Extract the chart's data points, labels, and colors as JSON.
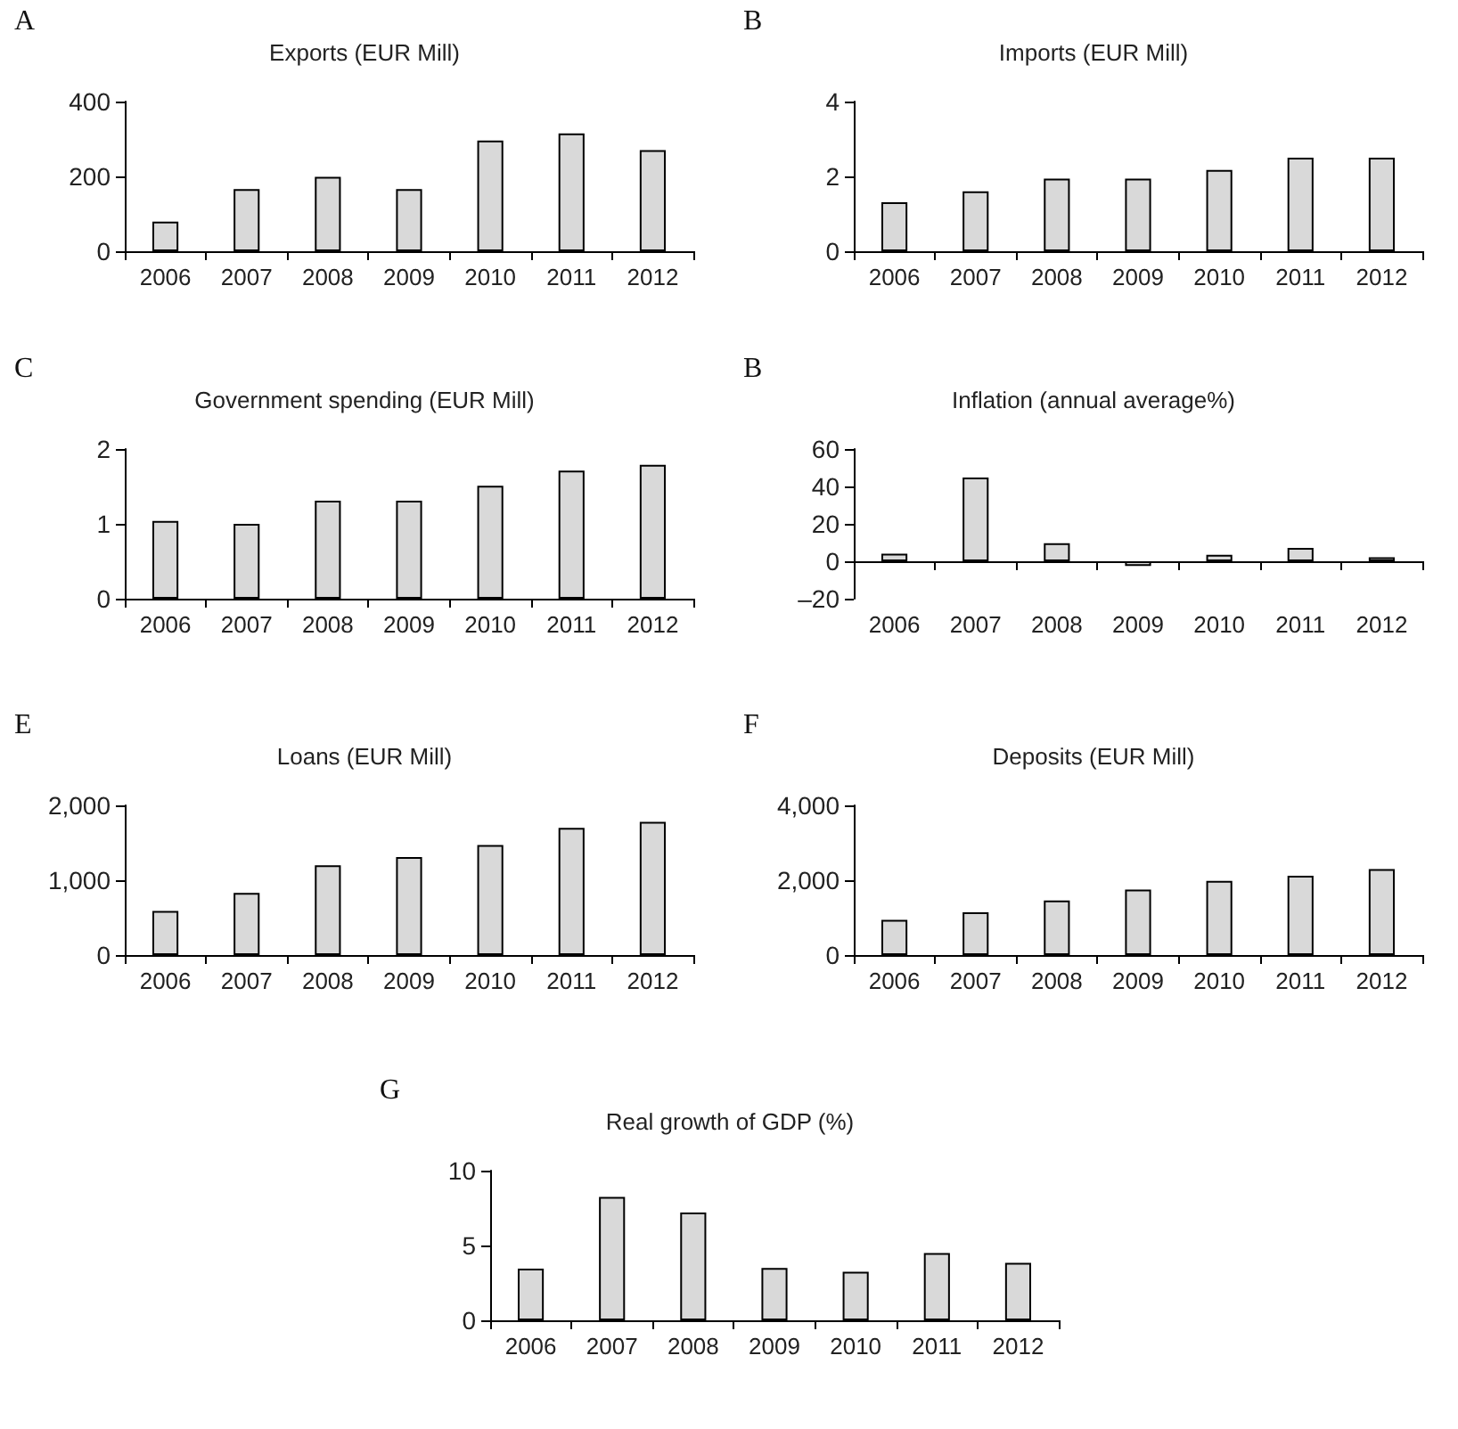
{
  "chart_data": [
    {
      "type": "bar",
      "title": "Exports (EUR Mill)",
      "annotations": [
        "A"
      ],
      "categories": [
        "2006",
        "2007",
        "2008",
        "2009",
        "2010",
        "2011",
        "2012"
      ],
      "values": [
        79,
        166,
        199,
        166,
        296,
        315,
        270
      ],
      "color": "#d9d9d9",
      "ylim": [
        0,
        400
      ],
      "yticks": [
        0,
        200,
        400
      ]
    },
    {
      "type": "bar",
      "title": "Imports (EUR Mill)",
      "annotations": [
        "B"
      ],
      "categories": [
        "2006",
        "2007",
        "2008",
        "2009",
        "2010",
        "2011",
        "2012"
      ],
      "values": [
        1.31,
        1.6,
        1.94,
        1.94,
        2.17,
        2.5,
        2.5
      ],
      "color": "#d9d9d9",
      "ylim": [
        0,
        4
      ],
      "yticks": [
        0,
        2,
        4
      ]
    },
    {
      "type": "bar",
      "title": "Government spending (EUR Mill)",
      "annotations": [
        "C"
      ],
      "categories": [
        "2006",
        "2007",
        "2008",
        "2009",
        "2010",
        "2011",
        "2012"
      ],
      "values": [
        1.04,
        1.0,
        1.31,
        1.31,
        1.51,
        1.71,
        1.79
      ],
      "color": "#d9d9d9",
      "ylim": [
        0,
        2
      ],
      "yticks": [
        0,
        1,
        2
      ]
    },
    {
      "type": "bar",
      "title": "Inflation (annual average%)",
      "annotations": [
        "B"
      ],
      "categories": [
        "2006",
        "2007",
        "2008",
        "2009",
        "2010",
        "2011",
        "2012"
      ],
      "values": [
        4,
        44.8,
        9.7,
        -2.5,
        3.5,
        7.2,
        2.2
      ],
      "color": "#d9d9d9",
      "ylim": [
        -20,
        60
      ],
      "yticks": [
        {
          "value": -20,
          "label": "–20"
        },
        0,
        20,
        40,
        60
      ]
    },
    {
      "type": "bar",
      "title": "Loans (EUR Mill)",
      "annotations": [
        "E"
      ],
      "categories": [
        "2006",
        "2007",
        "2008",
        "2009",
        "2010",
        "2011",
        "2012"
      ],
      "values": [
        590,
        830,
        1200,
        1310,
        1470,
        1700,
        1780
      ],
      "color": "#d9d9d9",
      "ylim": [
        0,
        2000
      ],
      "yticks": [
        0,
        {
          "value": 1000,
          "label": "1,000"
        },
        {
          "value": 2000,
          "label": "2,000"
        }
      ]
    },
    {
      "type": "bar",
      "title": "Deposits (EUR Mill)",
      "annotations": [
        "F"
      ],
      "categories": [
        "2006",
        "2007",
        "2008",
        "2009",
        "2010",
        "2011",
        "2012"
      ],
      "values": [
        940,
        1140,
        1460,
        1750,
        1980,
        2120,
        2300
      ],
      "color": "#d9d9d9",
      "ylim": [
        0,
        4000
      ],
      "yticks": [
        0,
        {
          "value": 2000,
          "label": "2,000"
        },
        {
          "value": 4000,
          "label": "4,000"
        }
      ]
    },
    {
      "type": "bar",
      "title": "Real growth of GDP (%)",
      "annotations": [
        "G"
      ],
      "categories": [
        "2006",
        "2007",
        "2008",
        "2009",
        "2010",
        "2011",
        "2012"
      ],
      "values": [
        3.45,
        8.24,
        7.2,
        3.5,
        3.25,
        4.5,
        3.84
      ],
      "color": "#d9d9d9",
      "ylim": [
        0,
        10
      ],
      "yticks": [
        0,
        5,
        10
      ]
    }
  ]
}
